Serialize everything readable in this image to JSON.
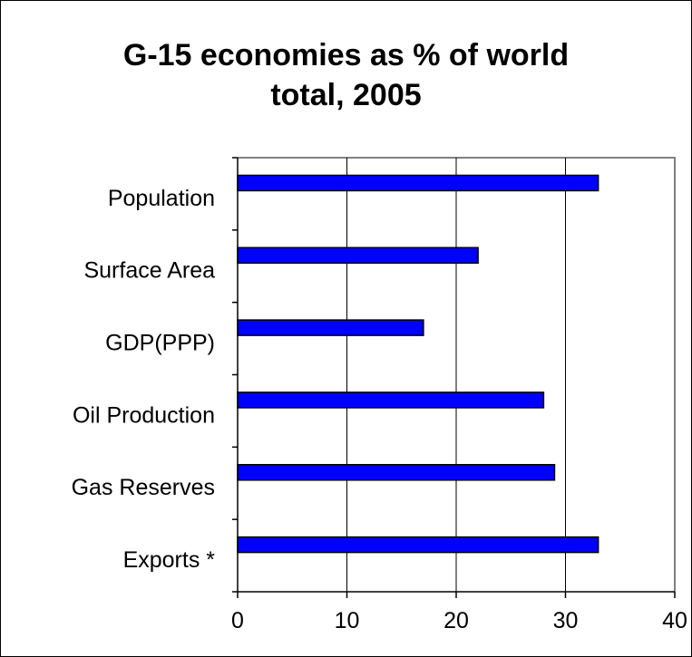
{
  "chart_data": {
    "type": "bar",
    "orientation": "horizontal",
    "title": "G-15 economies as % of world total, 2005",
    "title_lines": [
      "G-15 economies as % of world",
      "total, 2005"
    ],
    "categories": [
      "Population",
      "Surface Area",
      "GDP(PPP)",
      "Oil Production",
      "Gas Reserves",
      "Exports *"
    ],
    "values": [
      33,
      22,
      17,
      28,
      29,
      33
    ],
    "xlabel": "",
    "ylabel": "",
    "xlim": [
      0,
      40
    ],
    "xticks": [
      0,
      10,
      20,
      30,
      40
    ],
    "grid": "vertical",
    "legend": "none",
    "colors": {
      "bar": "#0000ff",
      "bar_outline": "#000000",
      "grid": "#000000",
      "plot_border": "#808080"
    }
  }
}
